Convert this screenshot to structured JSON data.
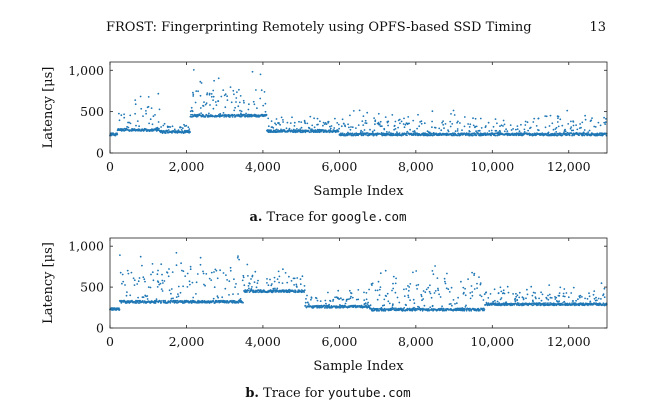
{
  "page": {
    "running_title": "FROST: Fingerprinting Remotely using OPFS-based SSD Timing",
    "page_number": "13"
  },
  "chart_data": [
    {
      "type": "scatter",
      "id": "a",
      "caption_label": "a.",
      "caption_text": "Trace for",
      "caption_site": "google.com",
      "xlabel": "Sample Index",
      "ylabel": "Latency [μs]",
      "xlim": [
        0,
        13000
      ],
      "ylim": [
        0,
        1100
      ],
      "xticks": [
        0,
        2000,
        4000,
        6000,
        8000,
        10000,
        12000
      ],
      "xtick_labels": [
        "0",
        "2,000",
        "4,000",
        "6,000",
        "8,000",
        "10,000",
        "12,000"
      ],
      "yticks": [
        0,
        500,
        1000
      ],
      "ytick_labels": [
        "0",
        "500",
        "1,000"
      ],
      "marker_color": "#1f77b4",
      "grid": false,
      "n_points": 13000,
      "segments": [
        {
          "x_range": [
            0,
            200
          ],
          "baseline": 225
        },
        {
          "x_range": [
            200,
            1300
          ],
          "baseline": 280,
          "peaks_to": 800
        },
        {
          "x_range": [
            1300,
            2100
          ],
          "baseline": 255,
          "peaks_to": 400
        },
        {
          "x_range": [
            2100,
            4100
          ],
          "baseline": 450,
          "peaks_to": 1020
        },
        {
          "x_range": [
            4100,
            6000
          ],
          "baseline": 265,
          "peaks_to": 470
        },
        {
          "x_range": [
            6000,
            13000
          ],
          "baseline": 225,
          "peaks_to": 530
        }
      ]
    },
    {
      "type": "scatter",
      "id": "b",
      "caption_label": "b.",
      "caption_text": "Trace for",
      "caption_site": "youtube.com",
      "xlabel": "Sample Index",
      "ylabel": "Latency [μs]",
      "xlim": [
        0,
        13000
      ],
      "ylim": [
        0,
        1100
      ],
      "xticks": [
        0,
        2000,
        4000,
        6000,
        8000,
        10000,
        12000
      ],
      "xtick_labels": [
        "0",
        "2,000",
        "4,000",
        "6,000",
        "8,000",
        "10,000",
        "12,000"
      ],
      "yticks": [
        0,
        500,
        1000
      ],
      "ytick_labels": [
        "0",
        "500",
        "1,000"
      ],
      "marker_color": "#1f77b4",
      "grid": false,
      "n_points": 13000,
      "segments": [
        {
          "x_range": [
            0,
            250
          ],
          "baseline": 230
        },
        {
          "x_range": [
            250,
            3500
          ],
          "baseline": 320,
          "peaks_to": 1050
        },
        {
          "x_range": [
            3500,
            5100
          ],
          "baseline": 450,
          "peaks_to": 800
        },
        {
          "x_range": [
            5100,
            6800
          ],
          "baseline": 260,
          "peaks_to": 480
        },
        {
          "x_range": [
            6800,
            9800
          ],
          "baseline": 225,
          "peaks_to": 820
        },
        {
          "x_range": [
            9800,
            13000
          ],
          "baseline": 290,
          "peaks_to": 560
        }
      ]
    }
  ]
}
